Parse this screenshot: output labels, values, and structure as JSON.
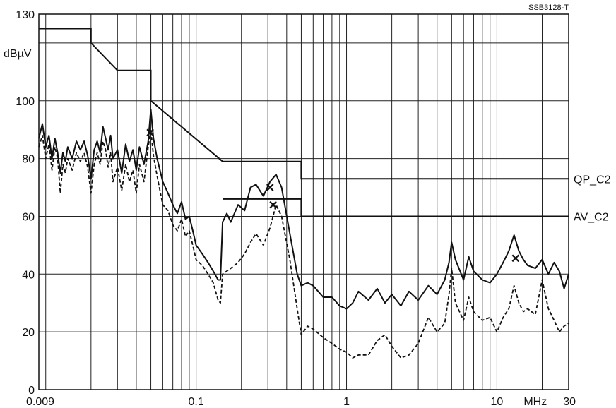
{
  "chart_data": {
    "type": "line",
    "figure_id": "SSB3128-T",
    "ylabel": "dBµV",
    "xlabel": "MHz",
    "x_scale": "log",
    "xlim": [
      0.009,
      30
    ],
    "ylim": [
      0,
      130
    ],
    "x_tick_labels": [
      {
        "value": 0.009,
        "label": "0.009"
      },
      {
        "value": 0.1,
        "label": "0.1"
      },
      {
        "value": 1,
        "label": "1"
      },
      {
        "value": 10,
        "label": "10"
      },
      {
        "value": 30,
        "label": "30"
      }
    ],
    "y_tick_labels": [
      {
        "value": 0,
        "label": "0"
      },
      {
        "value": 20,
        "label": "20"
      },
      {
        "value": 40,
        "label": "40"
      },
      {
        "value": 60,
        "label": "60"
      },
      {
        "value": 80,
        "label": "80"
      },
      {
        "value": 100,
        "label": "100"
      },
      {
        "value": 130,
        "label": "130"
      }
    ],
    "y_gridlines": [
      20,
      40,
      60,
      80,
      100,
      120
    ],
    "grid": true,
    "limit_lines": [
      {
        "name": "QP_C2",
        "points": [
          [
            0.009,
            125
          ],
          [
            0.02,
            125
          ],
          [
            0.02,
            120
          ],
          [
            0.03,
            110.5
          ],
          [
            0.05,
            110.5
          ],
          [
            0.05,
            100
          ],
          [
            0.15,
            79
          ],
          [
            0.5,
            79
          ],
          [
            0.5,
            73
          ],
          [
            30,
            73
          ]
        ]
      },
      {
        "name": "AV_C2",
        "points": [
          [
            0.15,
            66
          ],
          [
            0.5,
            66
          ],
          [
            0.5,
            60
          ],
          [
            30,
            60
          ]
        ]
      }
    ],
    "series": [
      {
        "style": "solid",
        "points": [
          [
            0.009,
            87
          ],
          [
            0.0095,
            92
          ],
          [
            0.01,
            84
          ],
          [
            0.0105,
            88
          ],
          [
            0.011,
            80
          ],
          [
            0.0115,
            87
          ],
          [
            0.012,
            82
          ],
          [
            0.0125,
            75
          ],
          [
            0.013,
            82
          ],
          [
            0.0135,
            79
          ],
          [
            0.014,
            84
          ],
          [
            0.015,
            80
          ],
          [
            0.016,
            86
          ],
          [
            0.017,
            83
          ],
          [
            0.018,
            86
          ],
          [
            0.019,
            81
          ],
          [
            0.02,
            73
          ],
          [
            0.021,
            83
          ],
          [
            0.022,
            86
          ],
          [
            0.023,
            82
          ],
          [
            0.024,
            91
          ],
          [
            0.025,
            87
          ],
          [
            0.026,
            83
          ],
          [
            0.027,
            88
          ],
          [
            0.028,
            80
          ],
          [
            0.03,
            83
          ],
          [
            0.032,
            75
          ],
          [
            0.034,
            85
          ],
          [
            0.036,
            79
          ],
          [
            0.038,
            83
          ],
          [
            0.04,
            76
          ],
          [
            0.042,
            84
          ],
          [
            0.045,
            78
          ],
          [
            0.048,
            86
          ],
          [
            0.05,
            97
          ],
          [
            0.052,
            87
          ],
          [
            0.055,
            80
          ],
          [
            0.06,
            72
          ],
          [
            0.065,
            68
          ],
          [
            0.07,
            64
          ],
          [
            0.075,
            61
          ],
          [
            0.08,
            65
          ],
          [
            0.085,
            59
          ],
          [
            0.09,
            60
          ],
          [
            0.095,
            55
          ],
          [
            0.1,
            50
          ],
          [
            0.11,
            47
          ],
          [
            0.12,
            44
          ],
          [
            0.13,
            41
          ],
          [
            0.14,
            38
          ],
          [
            0.145,
            38
          ],
          [
            0.15,
            58
          ],
          [
            0.16,
            61
          ],
          [
            0.17,
            58
          ],
          [
            0.19,
            64
          ],
          [
            0.21,
            62
          ],
          [
            0.23,
            70
          ],
          [
            0.25,
            71
          ],
          [
            0.28,
            67
          ],
          [
            0.31,
            72
          ],
          [
            0.34,
            74.5
          ],
          [
            0.37,
            70
          ],
          [
            0.42,
            54
          ],
          [
            0.47,
            40
          ],
          [
            0.5,
            36
          ],
          [
            0.55,
            37
          ],
          [
            0.6,
            36
          ],
          [
            0.7,
            32
          ],
          [
            0.8,
            32
          ],
          [
            0.9,
            29
          ],
          [
            1,
            28
          ],
          [
            1.1,
            30
          ],
          [
            1.2,
            34
          ],
          [
            1.4,
            31
          ],
          [
            1.6,
            35
          ],
          [
            1.8,
            30
          ],
          [
            2,
            33
          ],
          [
            2.3,
            29
          ],
          [
            2.6,
            34
          ],
          [
            3,
            31
          ],
          [
            3.5,
            36
          ],
          [
            4,
            33
          ],
          [
            4.5,
            38
          ],
          [
            4.8,
            44
          ],
          [
            5,
            51
          ],
          [
            5.3,
            45
          ],
          [
            6,
            38
          ],
          [
            6.5,
            46
          ],
          [
            7,
            41
          ],
          [
            8,
            38
          ],
          [
            9,
            37
          ],
          [
            10,
            40
          ],
          [
            11,
            44
          ],
          [
            12,
            48
          ],
          [
            13,
            53.5
          ],
          [
            14,
            48
          ],
          [
            15,
            45
          ],
          [
            16,
            43
          ],
          [
            18,
            42
          ],
          [
            20,
            45
          ],
          [
            22,
            40
          ],
          [
            24,
            44
          ],
          [
            26,
            41
          ],
          [
            28,
            35
          ],
          [
            30,
            40
          ]
        ]
      },
      {
        "style": "dashed",
        "points": [
          [
            0.009,
            84
          ],
          [
            0.0095,
            88
          ],
          [
            0.01,
            80
          ],
          [
            0.0105,
            85
          ],
          [
            0.011,
            76
          ],
          [
            0.0115,
            84
          ],
          [
            0.012,
            80
          ],
          [
            0.0125,
            68
          ],
          [
            0.013,
            78
          ],
          [
            0.0135,
            75
          ],
          [
            0.014,
            80
          ],
          [
            0.015,
            76
          ],
          [
            0.016,
            82
          ],
          [
            0.017,
            79
          ],
          [
            0.018,
            82
          ],
          [
            0.019,
            77
          ],
          [
            0.02,
            68
          ],
          [
            0.021,
            78
          ],
          [
            0.022,
            82
          ],
          [
            0.023,
            78
          ],
          [
            0.024,
            86
          ],
          [
            0.025,
            83
          ],
          [
            0.026,
            77
          ],
          [
            0.027,
            82
          ],
          [
            0.028,
            72
          ],
          [
            0.03,
            77
          ],
          [
            0.032,
            69
          ],
          [
            0.034,
            78
          ],
          [
            0.036,
            72
          ],
          [
            0.038,
            76
          ],
          [
            0.04,
            68
          ],
          [
            0.042,
            78
          ],
          [
            0.045,
            72
          ],
          [
            0.048,
            84
          ],
          [
            0.05,
            90
          ],
          [
            0.052,
            81
          ],
          [
            0.055,
            74
          ],
          [
            0.06,
            64
          ],
          [
            0.065,
            62
          ],
          [
            0.07,
            57
          ],
          [
            0.075,
            55
          ],
          [
            0.08,
            59
          ],
          [
            0.085,
            53
          ],
          [
            0.09,
            55
          ],
          [
            0.095,
            50
          ],
          [
            0.1,
            45
          ],
          [
            0.11,
            43
          ],
          [
            0.12,
            40
          ],
          [
            0.13,
            37
          ],
          [
            0.14,
            31
          ],
          [
            0.145,
            30
          ],
          [
            0.15,
            40
          ],
          [
            0.17,
            42
          ],
          [
            0.19,
            44
          ],
          [
            0.21,
            47
          ],
          [
            0.23,
            51
          ],
          [
            0.25,
            54
          ],
          [
            0.28,
            50
          ],
          [
            0.31,
            56
          ],
          [
            0.34,
            64
          ],
          [
            0.37,
            60
          ],
          [
            0.42,
            45
          ],
          [
            0.47,
            28
          ],
          [
            0.5,
            19
          ],
          [
            0.55,
            22
          ],
          [
            0.6,
            21
          ],
          [
            0.7,
            18
          ],
          [
            0.8,
            16
          ],
          [
            0.9,
            14
          ],
          [
            1,
            13
          ],
          [
            1.1,
            11
          ],
          [
            1.2,
            12
          ],
          [
            1.4,
            12
          ],
          [
            1.6,
            17
          ],
          [
            1.8,
            19
          ],
          [
            2,
            15
          ],
          [
            2.3,
            11
          ],
          [
            2.6,
            12
          ],
          [
            3,
            16
          ],
          [
            3.5,
            25
          ],
          [
            4,
            20
          ],
          [
            4.5,
            23
          ],
          [
            4.8,
            33
          ],
          [
            5,
            42
          ],
          [
            5.3,
            30
          ],
          [
            6,
            24
          ],
          [
            6.5,
            32
          ],
          [
            7,
            27
          ],
          [
            8,
            24
          ],
          [
            9,
            25
          ],
          [
            10,
            20
          ],
          [
            11,
            25
          ],
          [
            12,
            28
          ],
          [
            13,
            36
          ],
          [
            14,
            30
          ],
          [
            15,
            27
          ],
          [
            16,
            28
          ],
          [
            18,
            26
          ],
          [
            20,
            38
          ],
          [
            22,
            28
          ],
          [
            24,
            24
          ],
          [
            26,
            20
          ],
          [
            28,
            22
          ],
          [
            30,
            23
          ]
        ]
      }
    ],
    "markers": [
      {
        "x": 0.0495,
        "y": 89
      },
      {
        "x": 0.31,
        "y": 70
      },
      {
        "x": 0.325,
        "y": 64
      },
      {
        "x": 13.3,
        "y": 45.5
      }
    ]
  }
}
